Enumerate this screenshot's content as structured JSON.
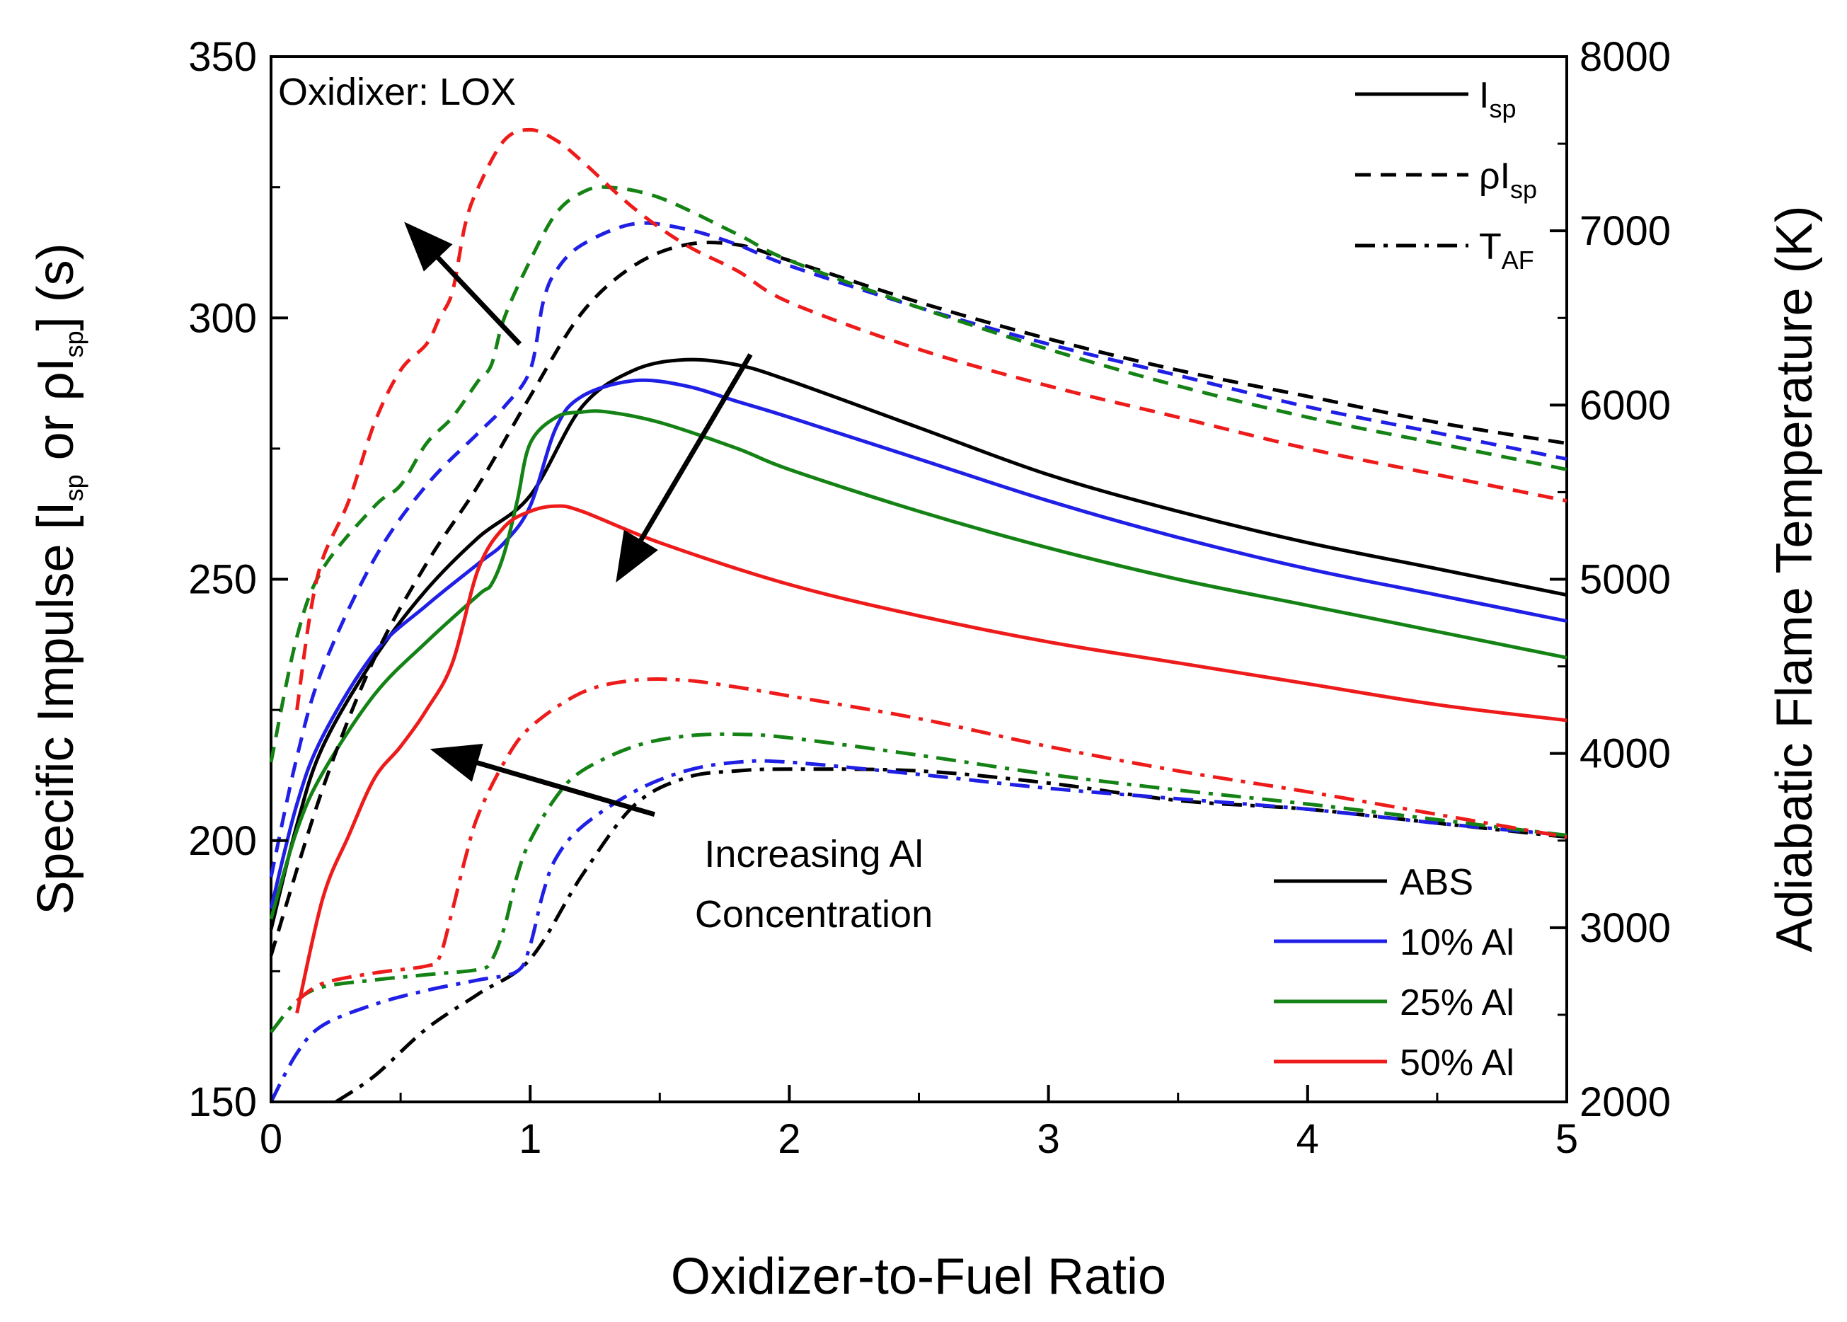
{
  "chart_data": {
    "type": "line",
    "title": "",
    "xlabel": "Oxidizer-to-Fuel Ratio",
    "ylabel_left": {
      "part1": "Specific Impulse [I",
      "sub1": "sp",
      "part2": " or ρI",
      "sub2": "sp",
      "part3": "] (s)"
    },
    "ylabel_right": "Adiabatic Flame Temperature (K)",
    "xlim": [
      0,
      5
    ],
    "ylim_left": [
      150,
      350
    ],
    "ylim_right": [
      2000,
      8000
    ],
    "x_ticks": [
      "0",
      "1",
      "2",
      "3",
      "4",
      "5"
    ],
    "y_left_ticks": [
      "150",
      "200",
      "250",
      "300",
      "350"
    ],
    "y_right_ticks": [
      "2000",
      "3000",
      "4000",
      "5000",
      "6000",
      "7000",
      "8000"
    ],
    "annotations": {
      "oxidizer": "Oxidixer: LOX",
      "increase_line1": "Increasing Al",
      "increase_line2": "Concentration"
    },
    "style_legend": [
      {
        "main": "I",
        "sub": "sp",
        "style": "solid"
      },
      {
        "main": "ρI",
        "sub": "sp",
        "style": "dashed"
      },
      {
        "main": "T",
        "sub": "AF",
        "style": "dash-dot"
      }
    ],
    "material_legend": [
      {
        "label": "ABS",
        "color": "#000000"
      },
      {
        "label": "10% Al",
        "color": "#1f1fe6"
      },
      {
        "label": "25% Al",
        "color": "#148214"
      },
      {
        "label": "50% Al",
        "color": "#ee1b1b"
      }
    ],
    "series": [
      {
        "name": "ABS Isp",
        "metric": "Isp",
        "axis": "left",
        "style": "solid",
        "color": "#000000",
        "x": [
          0,
          0.1,
          0.2,
          0.4,
          0.6,
          0.8,
          1.0,
          1.2,
          1.4,
          1.6,
          1.8,
          2.0,
          2.5,
          3.0,
          3.5,
          4.0,
          4.5,
          5.0
        ],
        "y": [
          183,
          203,
          218,
          235,
          248,
          258,
          266,
          283,
          290,
          292,
          291,
          288,
          279,
          270,
          263,
          257,
          252,
          247
        ]
      },
      {
        "name": "10% Al Isp",
        "metric": "Isp",
        "axis": "left",
        "style": "solid",
        "color": "#1f1fe6",
        "x": [
          0,
          0.1,
          0.2,
          0.4,
          0.6,
          0.8,
          0.9,
          1.0,
          1.1,
          1.2,
          1.4,
          1.6,
          1.8,
          2.0,
          2.5,
          3.0,
          3.5,
          4.0,
          4.5,
          5.0
        ],
        "y": [
          187,
          207,
          220,
          236,
          245,
          253,
          257,
          264,
          279,
          285,
          288,
          287,
          284,
          281,
          273,
          265,
          258,
          252,
          247,
          242
        ]
      },
      {
        "name": "25% Al Isp",
        "metric": "Isp",
        "axis": "left",
        "style": "solid",
        "color": "#148214",
        "x": [
          0,
          0.1,
          0.2,
          0.4,
          0.6,
          0.8,
          0.85,
          0.9,
          0.95,
          1.0,
          1.1,
          1.2,
          1.3,
          1.5,
          1.8,
          2.0,
          2.5,
          3.0,
          3.5,
          4.0,
          4.5,
          5.0
        ],
        "y": [
          185,
          202,
          213,
          228,
          238,
          247,
          249,
          255,
          265,
          276,
          281,
          282,
          282,
          280,
          275,
          271,
          263,
          256,
          250,
          245,
          240,
          235
        ]
      },
      {
        "name": "50% Al Isp",
        "metric": "Isp",
        "axis": "left",
        "style": "solid",
        "color": "#ee1b1b",
        "x": [
          0.1,
          0.2,
          0.3,
          0.4,
          0.5,
          0.6,
          0.7,
          0.8,
          0.9,
          1.0,
          1.1,
          1.2,
          1.5,
          2.0,
          2.5,
          3.0,
          3.5,
          4.0,
          4.5,
          5.0
        ],
        "y": [
          167,
          189,
          201,
          212,
          218,
          225,
          234,
          252,
          260,
          263,
          264,
          263,
          257,
          249,
          243,
          238,
          234,
          230,
          226,
          223
        ]
      },
      {
        "name": "ABS rho-Isp",
        "metric": "rhoIsp",
        "axis": "left",
        "style": "dashed",
        "color": "#000000",
        "x": [
          0,
          0.2,
          0.4,
          0.6,
          0.8,
          1.0,
          1.2,
          1.4,
          1.6,
          1.8,
          2.0,
          2.5,
          3.0,
          3.5,
          4.0,
          4.5,
          5.0
        ],
        "y": [
          178,
          210,
          235,
          253,
          268,
          285,
          301,
          310,
          314,
          314,
          311,
          303,
          296,
          290,
          285,
          280,
          276
        ]
      },
      {
        "name": "10% Al rho-Isp",
        "metric": "rhoIsp",
        "axis": "left",
        "style": "dashed",
        "color": "#1f1fe6",
        "x": [
          0,
          0.1,
          0.2,
          0.4,
          0.6,
          0.8,
          0.9,
          1.0,
          1.05,
          1.1,
          1.2,
          1.4,
          1.6,
          1.8,
          2.0,
          2.5,
          3.0,
          3.5,
          4.0,
          4.5,
          5.0
        ],
        "y": [
          193,
          216,
          233,
          254,
          268,
          278,
          283,
          290,
          303,
          309,
          314,
          318,
          317,
          314,
          310,
          302,
          295,
          289,
          283,
          278,
          273
        ]
      },
      {
        "name": "25% Al rho-Isp",
        "metric": "rhoIsp",
        "axis": "left",
        "style": "dashed",
        "color": "#148214",
        "x": [
          0,
          0.1,
          0.2,
          0.4,
          0.5,
          0.6,
          0.7,
          0.8,
          0.85,
          0.9,
          1.0,
          1.1,
          1.2,
          1.3,
          1.5,
          1.8,
          2.0,
          2.5,
          3.0,
          3.5,
          4.0,
          4.5,
          5.0
        ],
        "y": [
          215,
          239,
          252,
          264,
          268,
          276,
          281,
          288,
          291,
          300,
          311,
          320,
          324,
          325,
          323,
          316,
          311,
          302,
          294,
          287,
          281,
          276,
          271
        ]
      },
      {
        "name": "50% Al rho-Isp",
        "metric": "rhoIsp",
        "axis": "left",
        "style": "dashed",
        "color": "#ee1b1b",
        "x": [
          0.1,
          0.15,
          0.2,
          0.3,
          0.4,
          0.5,
          0.6,
          0.65,
          0.7,
          0.75,
          0.8,
          0.9,
          1.0,
          1.1,
          1.2,
          1.4,
          1.6,
          1.8,
          2.0,
          2.5,
          3.0,
          3.5,
          4.0,
          4.5,
          5.0
        ],
        "y": [
          225,
          243,
          254,
          265,
          280,
          290,
          295,
          300,
          305,
          318,
          325,
          334,
          336,
          334,
          330,
          321,
          314,
          309,
          303,
          294,
          287,
          281,
          275,
          270,
          265
        ]
      },
      {
        "name": "ABS T_AF",
        "metric": "Taf",
        "axis": "right",
        "style": "dashdot",
        "color": "#000000",
        "x": [
          0.25,
          0.4,
          0.6,
          0.8,
          1.0,
          1.2,
          1.4,
          1.6,
          1.8,
          2.0,
          2.5,
          3.0,
          3.5,
          4.0,
          4.5,
          5.0
        ],
        "y": [
          2000,
          2150,
          2420,
          2620,
          2820,
          3300,
          3700,
          3860,
          3900,
          3910,
          3900,
          3830,
          3730,
          3680,
          3600,
          3520
        ]
      },
      {
        "name": "10% Al T_AF",
        "metric": "Taf",
        "axis": "right",
        "style": "dashdot",
        "color": "#1f1fe6",
        "x": [
          0,
          0.1,
          0.2,
          0.4,
          0.6,
          0.8,
          0.95,
          1.0,
          1.05,
          1.1,
          1.2,
          1.4,
          1.6,
          1.8,
          2.0,
          2.5,
          3.0,
          3.5,
          4.0,
          4.5,
          5.0
        ],
        "y": [
          2000,
          2280,
          2440,
          2560,
          2640,
          2700,
          2750,
          2900,
          3200,
          3400,
          3580,
          3780,
          3900,
          3950,
          3950,
          3880,
          3800,
          3740,
          3680,
          3600,
          3530
        ]
      },
      {
        "name": "25% Al T_AF",
        "metric": "Taf",
        "axis": "right",
        "style": "dashdot",
        "color": "#148214",
        "x": [
          0,
          0.1,
          0.2,
          0.4,
          0.6,
          0.8,
          0.85,
          0.9,
          0.95,
          1.0,
          1.1,
          1.2,
          1.4,
          1.6,
          1.8,
          2.0,
          2.5,
          3.0,
          3.5,
          4.0,
          4.5,
          5.0
        ],
        "y": [
          2400,
          2580,
          2660,
          2700,
          2730,
          2760,
          2810,
          3000,
          3300,
          3500,
          3750,
          3900,
          4040,
          4100,
          4110,
          4090,
          3990,
          3880,
          3790,
          3710,
          3620,
          3530
        ]
      },
      {
        "name": "50% Al T_AF",
        "metric": "Taf",
        "axis": "right",
        "style": "dashdot",
        "color": "#ee1b1b",
        "x": [
          0.1,
          0.2,
          0.4,
          0.6,
          0.65,
          0.7,
          0.75,
          0.8,
          0.9,
          1.0,
          1.2,
          1.4,
          1.6,
          1.8,
          2.0,
          2.5,
          3.0,
          3.5,
          4.0,
          4.5,
          5.0
        ],
        "y": [
          2580,
          2680,
          2740,
          2780,
          2830,
          3100,
          3400,
          3650,
          3950,
          4150,
          4350,
          4420,
          4420,
          4380,
          4330,
          4200,
          4040,
          3900,
          3780,
          3650,
          3520
        ]
      }
    ]
  }
}
